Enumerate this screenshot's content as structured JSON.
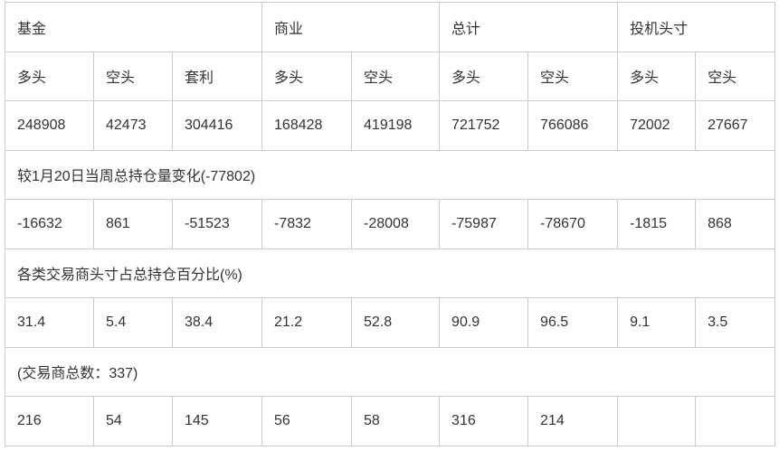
{
  "groups": [
    "基金",
    "商业",
    "总计",
    "投机头寸"
  ],
  "subheaders": [
    "多头",
    "空头",
    "套利",
    "多头",
    "空头",
    "多头",
    "空头",
    "多头",
    "空头"
  ],
  "positions": [
    "248908",
    "42473",
    "304416",
    "168428",
    "419198",
    "721752",
    "766086",
    "72002",
    "27667"
  ],
  "change_title": "较1月20日当周总持仓量变化(-77802)",
  "changes": [
    "-16632",
    "861",
    "-51523",
    "-7832",
    "-28008",
    "-75987",
    "-78670",
    "-1815",
    "868"
  ],
  "percent_title": "各类交易商头寸占总持仓百分比(%)",
  "percents": [
    "31.4",
    "5.4",
    "38.4",
    "21.2",
    "52.8",
    "90.9",
    "96.5",
    "9.1",
    "3.5"
  ],
  "traders_title": "(交易商总数：337)",
  "traders": [
    "216",
    "54",
    "145",
    "56",
    "58",
    "316",
    "214",
    "",
    ""
  ]
}
